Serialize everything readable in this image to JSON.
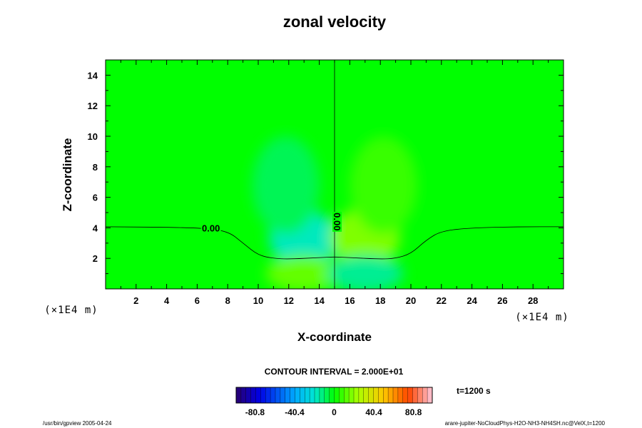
{
  "chart_data": {
    "type": "heatmap",
    "title": "zonal velocity",
    "xlabel": "X-coordinate",
    "ylabel": "Z-coordinate",
    "x_units": "(×1E4 m)",
    "y_units": "(×1E4 m)",
    "xlim": [
      0,
      30
    ],
    "ylim": [
      0,
      15
    ],
    "x_ticks": [
      2,
      4,
      6,
      8,
      10,
      12,
      14,
      16,
      18,
      20,
      22,
      24,
      26,
      28
    ],
    "y_ticks": [
      2,
      4,
      6,
      8,
      10,
      12,
      14
    ],
    "background_level": 0,
    "anomalies": [
      {
        "x": 13,
        "z": 3.3,
        "rx": 2.3,
        "rz": 1.8,
        "value": 18,
        "sign": "negative"
      },
      {
        "x": 17,
        "z": 3.4,
        "rx": 2.3,
        "rz": 1.9,
        "value": 18,
        "sign": "positive"
      },
      {
        "x": 13,
        "z": 1.0,
        "rx": 2.5,
        "rz": 1.2,
        "value": 14,
        "sign": "positive"
      },
      {
        "x": 17,
        "z": 1.0,
        "rx": 2.5,
        "rz": 1.2,
        "value": 14,
        "sign": "negative"
      },
      {
        "x": 11.8,
        "z": 6.8,
        "rx": 2.2,
        "rz": 3.2,
        "value": 8,
        "sign": "negative"
      },
      {
        "x": 18.2,
        "z": 6.8,
        "rx": 2.2,
        "rz": 3.2,
        "value": 8,
        "sign": "positive"
      }
    ],
    "zero_contour_horizontal": [
      [
        0,
        4.07
      ],
      [
        6,
        4.02
      ],
      [
        8,
        3.8
      ],
      [
        9,
        3.0
      ],
      [
        10,
        2.2
      ],
      [
        11,
        2.0
      ],
      [
        12,
        1.95
      ],
      [
        14,
        2.05
      ],
      [
        15,
        2.1
      ],
      [
        16,
        2.05
      ],
      [
        18,
        1.95
      ],
      [
        19,
        2.0
      ],
      [
        20,
        2.3
      ],
      [
        21,
        3.2
      ],
      [
        22,
        3.8
      ],
      [
        24,
        4.0
      ],
      [
        27,
        4.07
      ],
      [
        30,
        4.07
      ]
    ],
    "zero_contour_vertical_x": 15,
    "contour_labels": [
      {
        "text": "0.00",
        "x": 6.9,
        "z": 3.85,
        "rotate": 0
      },
      {
        "text": "0.00",
        "x": 15.05,
        "z": 4.4,
        "rotate": 90
      }
    ],
    "contour_interval": "CONTOUR INTERVAL = 2.000E+01",
    "colorbar": {
      "min": -100,
      "max": 100,
      "tick_labels": [
        "-80.8",
        "-40.4",
        "0",
        "40.4",
        "80.8"
      ],
      "tick_values": [
        -80.8,
        -40.4,
        0,
        40.4,
        80.8
      ]
    },
    "time_label": "t=1200 s"
  },
  "footer": {
    "left": "/usr/bin/gpview 2005-04-24",
    "right": "arare-jupiter-NoCloudPhys-H2O-NH3-NH4SH.nc@VelX,t=1200"
  }
}
